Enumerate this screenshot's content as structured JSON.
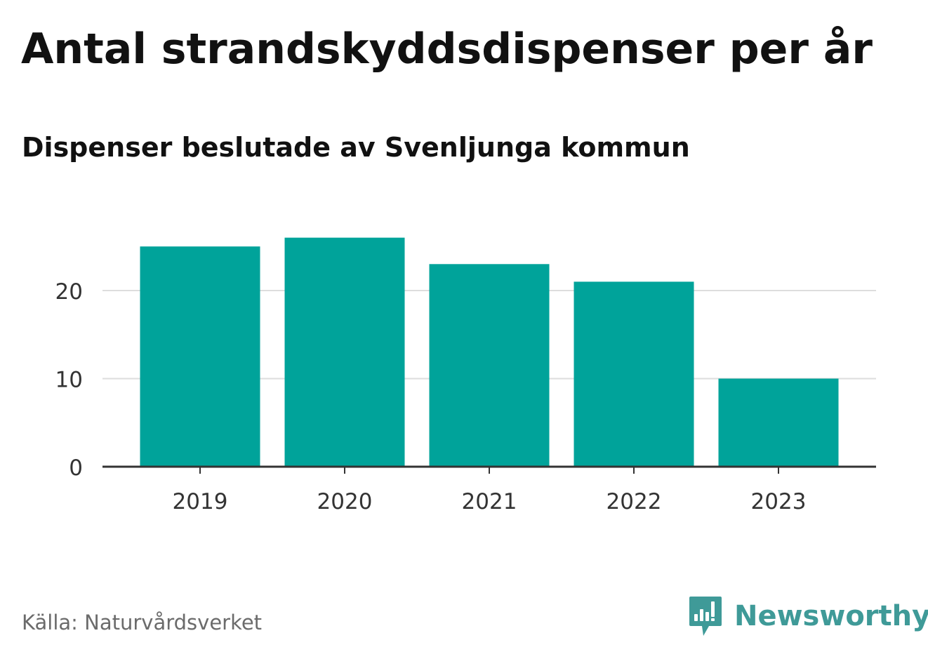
{
  "header": {
    "title": "Antal strandskyddsdispenser per år",
    "subtitle": "Dispenser beslutade av Svenljunga kommun"
  },
  "footer": {
    "source": "Källa: Naturvårdsverket",
    "brand": "Newsworthy",
    "brand_icon": "newsworthy-logo-icon",
    "brand_color": "#3f9a98"
  },
  "chart_data": {
    "type": "bar",
    "title": "Antal strandskyddsdispenser per år",
    "subtitle": "Dispenser beslutade av Svenljunga kommun",
    "xlabel": "",
    "ylabel": "",
    "categories": [
      "2019",
      "2020",
      "2021",
      "2022",
      "2023"
    ],
    "values": [
      25,
      26,
      23,
      21,
      10
    ],
    "yticks": [
      0,
      10,
      20
    ],
    "ylim": [
      0,
      28.6
    ],
    "grid": true,
    "bar_color": "#00a39a",
    "grid_color": "#dddddd",
    "axis_color": "#333333",
    "tick_label_color": "#333333"
  }
}
